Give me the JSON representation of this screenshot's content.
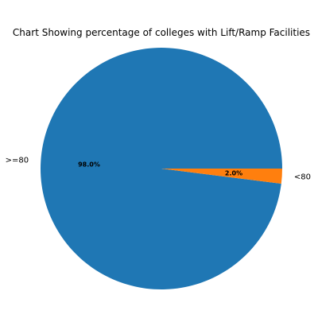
{
  "chart_data": {
    "type": "pie",
    "title": "Chart Showing percentage of colleges with Lift/Ramp Facilities",
    "slices": [
      {
        "label": ">=80",
        "value": 98.0,
        "pct_label": "98.0%",
        "color": "#1f77b4"
      },
      {
        "label": "<80",
        "value": 2.0,
        "pct_label": "2.0%",
        "color": "#ff7f0e"
      }
    ],
    "start_angle_deg": 0,
    "direction": "counterclockwise",
    "legend": "none"
  }
}
